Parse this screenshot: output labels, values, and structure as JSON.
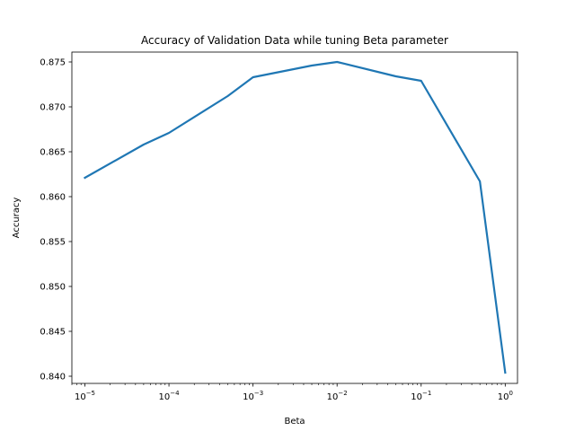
{
  "chart_data": {
    "type": "line",
    "title": "Accuracy of Validation Data while tuning Beta parameter",
    "xlabel": "Beta",
    "ylabel": "Accuracy",
    "x_scale": "log",
    "xlim": [
      7e-06,
      1.4
    ],
    "ylim": [
      0.8392,
      0.8761
    ],
    "grid": false,
    "x_ticks": [
      {
        "value": 1e-05,
        "base": "10",
        "exp": "−5"
      },
      {
        "value": 0.0001,
        "base": "10",
        "exp": "−4"
      },
      {
        "value": 0.001,
        "base": "10",
        "exp": "−3"
      },
      {
        "value": 0.01,
        "base": "10",
        "exp": "−2"
      },
      {
        "value": 0.1,
        "base": "10",
        "exp": "−1"
      },
      {
        "value": 1,
        "base": "10",
        "exp": "0"
      }
    ],
    "y_ticks": [
      {
        "value": 0.84,
        "label": "0.840"
      },
      {
        "value": 0.845,
        "label": "0.845"
      },
      {
        "value": 0.85,
        "label": "0.850"
      },
      {
        "value": 0.855,
        "label": "0.855"
      },
      {
        "value": 0.86,
        "label": "0.860"
      },
      {
        "value": 0.865,
        "label": "0.865"
      },
      {
        "value": 0.87,
        "label": "0.870"
      },
      {
        "value": 0.875,
        "label": "0.875"
      }
    ],
    "series": [
      {
        "color": "#1f77b4",
        "x": [
          1e-05,
          5e-05,
          0.0001,
          0.0005,
          0.001,
          0.005,
          0.01,
          0.05,
          0.1,
          0.5,
          1.0
        ],
        "y": [
          0.8621,
          0.8658,
          0.8671,
          0.8712,
          0.8733,
          0.8746,
          0.875,
          0.8734,
          0.8729,
          0.8617,
          0.8404
        ]
      }
    ]
  }
}
